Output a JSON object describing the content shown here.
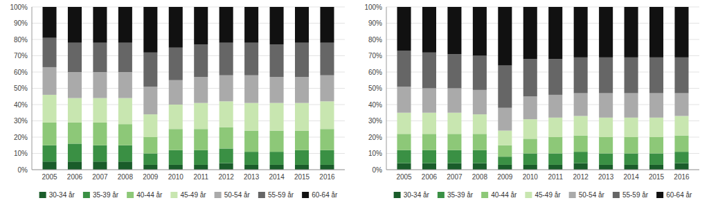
{
  "chart_data": [
    {
      "type": "bar",
      "stacked": true,
      "grid": true,
      "legend": "bottom",
      "categories": [
        "2005",
        "2006",
        "2007",
        "2008",
        "2009",
        "2010",
        "2011",
        "2012",
        "2013",
        "2014",
        "2015",
        "2016"
      ],
      "series": [
        {
          "name": "30-34 år",
          "color": "#1a5c2a",
          "values": [
            5,
            5,
            5,
            5,
            3,
            3,
            3,
            4,
            3,
            3,
            3,
            3
          ]
        },
        {
          "name": "35-39 år",
          "color": "#3a9044",
          "values": [
            10,
            11,
            10,
            10,
            7,
            9,
            9,
            9,
            8,
            8,
            9,
            9
          ]
        },
        {
          "name": "40-44 år",
          "color": "#8dc878",
          "values": [
            14,
            13,
            14,
            13,
            10,
            13,
            13,
            13,
            13,
            13,
            12,
            13
          ]
        },
        {
          "name": "45-49 år",
          "color": "#c8e6b0",
          "values": [
            17,
            15,
            15,
            16,
            14,
            15,
            16,
            16,
            17,
            17,
            17,
            17
          ]
        },
        {
          "name": "50-54 år",
          "color": "#aaaaaa",
          "values": [
            17,
            16,
            16,
            16,
            17,
            15,
            16,
            16,
            17,
            16,
            16,
            16
          ]
        },
        {
          "name": "55-59 år",
          "color": "#666666",
          "values": [
            18,
            18,
            18,
            18,
            21,
            20,
            20,
            20,
            20,
            20,
            21,
            20
          ]
        },
        {
          "name": "60-64 år",
          "color": "#111111",
          "values": [
            19,
            22,
            22,
            22,
            28,
            25,
            23,
            22,
            22,
            23,
            22,
            22
          ]
        }
      ],
      "ylim": [
        0,
        100
      ],
      "yticks": [
        {
          "value": 0,
          "label": "0%"
        },
        {
          "value": 10,
          "label": "10%"
        },
        {
          "value": 20,
          "label": "20%"
        },
        {
          "value": 30,
          "label": "30%"
        },
        {
          "value": 40,
          "label": "40%"
        },
        {
          "value": 50,
          "label": "50%"
        },
        {
          "value": 60,
          "label": "60%"
        },
        {
          "value": 70,
          "label": "70%"
        },
        {
          "value": 80,
          "label": "80%"
        },
        {
          "value": 90,
          "label": "90%"
        },
        {
          "value": 100,
          "label": "100%"
        }
      ]
    },
    {
      "type": "bar",
      "stacked": true,
      "grid": true,
      "legend": "bottom",
      "categories": [
        "2005",
        "2006",
        "2007",
        "2008",
        "2009",
        "2010",
        "2011",
        "2012",
        "2013",
        "2014",
        "2015",
        "2016"
      ],
      "series": [
        {
          "name": "30-34 år",
          "color": "#1a5c2a",
          "values": [
            4,
            4,
            4,
            4,
            3,
            3,
            3,
            4,
            3,
            3,
            3,
            4
          ]
        },
        {
          "name": "35-39 år",
          "color": "#3a9044",
          "values": [
            8,
            8,
            8,
            8,
            5,
            7,
            7,
            7,
            7,
            7,
            7,
            7
          ]
        },
        {
          "name": "40-44 år",
          "color": "#8dc878",
          "values": [
            10,
            10,
            10,
            10,
            7,
            9,
            10,
            10,
            10,
            10,
            10,
            10
          ]
        },
        {
          "name": "45-49 år",
          "color": "#c8e6b0",
          "values": [
            13,
            13,
            13,
            12,
            9,
            12,
            12,
            12,
            12,
            12,
            12,
            12
          ]
        },
        {
          "name": "50-54 år",
          "color": "#aaaaaa",
          "values": [
            16,
            15,
            15,
            15,
            14,
            14,
            14,
            14,
            15,
            15,
            15,
            14
          ]
        },
        {
          "name": "55-59 år",
          "color": "#666666",
          "values": [
            22,
            22,
            21,
            21,
            26,
            23,
            22,
            22,
            22,
            22,
            22,
            22
          ]
        },
        {
          "name": "60-64 år",
          "color": "#111111",
          "values": [
            27,
            28,
            29,
            30,
            36,
            32,
            32,
            31,
            31,
            31,
            31,
            31
          ]
        }
      ],
      "ylim": [
        0,
        100
      ],
      "yticks": [
        {
          "value": 0,
          "label": "0%"
        },
        {
          "value": 10,
          "label": "10%"
        },
        {
          "value": 20,
          "label": "20%"
        },
        {
          "value": 30,
          "label": "30%"
        },
        {
          "value": 40,
          "label": "40%"
        },
        {
          "value": 50,
          "label": "50%"
        },
        {
          "value": 60,
          "label": "60%"
        },
        {
          "value": 70,
          "label": "70%"
        },
        {
          "value": 80,
          "label": "80%"
        },
        {
          "value": 90,
          "label": "90%"
        },
        {
          "value": 100,
          "label": "100%"
        }
      ]
    }
  ]
}
